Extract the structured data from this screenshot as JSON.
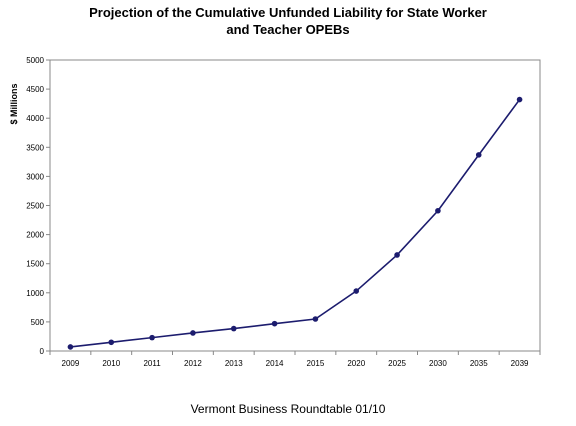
{
  "chart_data": {
    "type": "line",
    "title_lines": [
      "Projection of the Cumulative Unfunded Liability for State Worker",
      "and Teacher OPEBs"
    ],
    "xlabel": "",
    "ylabel": "$ Millions",
    "categories": [
      "2009",
      "2010",
      "2011",
      "2012",
      "2013",
      "2014",
      "2015",
      "2020",
      "2025",
      "2030",
      "2035",
      "2039"
    ],
    "series": [
      {
        "values": [
          70,
          150,
          230,
          310,
          385,
          470,
          550,
          1030,
          1650,
          2410,
          3370,
          4320
        ]
      }
    ],
    "ylim": [
      0,
      5000
    ],
    "yticks": [
      0,
      500,
      1000,
      1500,
      2000,
      2500,
      3000,
      3500,
      4000,
      4500,
      5000
    ],
    "grid": false,
    "legend": "none",
    "line_color": "#1c1c6e"
  },
  "footer": {
    "source": "Vermont Business Roundtable 01/10"
  }
}
